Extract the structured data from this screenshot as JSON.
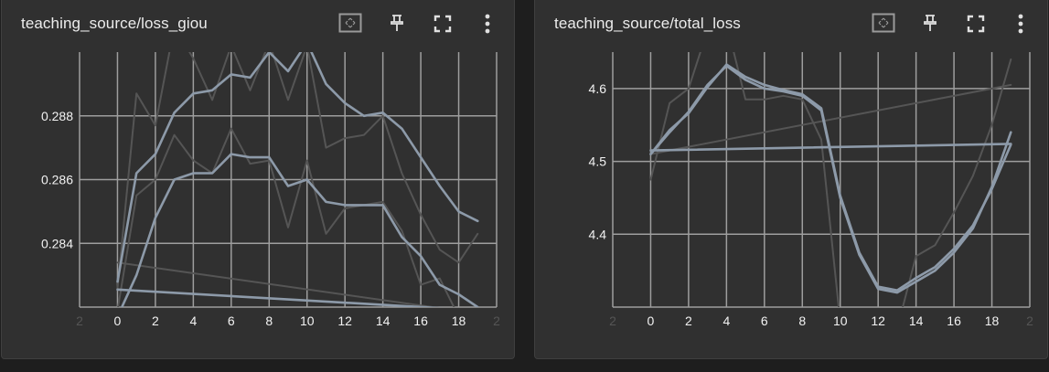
{
  "colors": {
    "background": "#1e1e1e",
    "card": "#303030",
    "grid": "#9e9e9e",
    "tick_text": "#f2f2f2",
    "series_main": "#8d9aa9",
    "series_faint": "#555555"
  },
  "toolbar_icons": [
    "fit-domain-icon",
    "pin-icon",
    "fullscreen-icon",
    "more-vert-icon"
  ],
  "chart_data": [
    {
      "type": "line",
      "title": "teaching_source/loss_giou",
      "x_ticks": [
        0,
        2,
        4,
        6,
        8,
        10,
        12,
        14,
        16,
        18
      ],
      "y_ticks": [
        0.284,
        0.286,
        0.288
      ],
      "y_tick_labels": [
        "0.284",
        "0.286",
        "0.288"
      ],
      "xlim": [
        -2,
        20
      ],
      "ylim": [
        0.282,
        0.29
      ],
      "grid": true,
      "series": [
        {
          "style": "faint",
          "x": [
            0,
            1,
            2,
            3,
            4,
            5,
            6,
            7,
            8,
            9,
            10,
            11,
            12,
            13,
            14,
            15,
            16,
            17,
            18,
            19
          ],
          "y": [
            0.2826,
            0.2887,
            0.2877,
            0.2908,
            0.2898,
            0.2885,
            0.2902,
            0.2888,
            0.2903,
            0.2885,
            0.2902,
            0.287,
            0.2873,
            0.2874,
            0.288,
            0.2862,
            0.2849,
            0.2838,
            0.2834,
            0.2843
          ]
        },
        {
          "style": "faint",
          "x": [
            0,
            1,
            2,
            3,
            4,
            5,
            6,
            7,
            8,
            9,
            10,
            11,
            12,
            13,
            14,
            15,
            16,
            17,
            18,
            19
          ],
          "y": [
            0.2819,
            0.2855,
            0.286,
            0.2874,
            0.2866,
            0.2862,
            0.2876,
            0.2865,
            0.2866,
            0.2845,
            0.2866,
            0.2843,
            0.2851,
            0.2852,
            0.2853,
            0.2844,
            0.2827,
            0.2829,
            0.2817,
            0.2815
          ]
        },
        {
          "style": "faint",
          "x": [
            0,
            19
          ],
          "y": [
            0.2834,
            0.2818
          ]
        },
        {
          "style": "main",
          "x": [
            0,
            1,
            2,
            3,
            4,
            5,
            6,
            7,
            8,
            9,
            10,
            11,
            12,
            13,
            14,
            15,
            16,
            17,
            18,
            19
          ],
          "y": [
            0.2828,
            0.2862,
            0.2868,
            0.2881,
            0.2887,
            0.2888,
            0.2893,
            0.2892,
            0.29,
            0.2894,
            0.2903,
            0.289,
            0.2884,
            0.288,
            0.2881,
            0.2876,
            0.2867,
            0.2858,
            0.285,
            0.2847
          ]
        },
        {
          "style": "main",
          "x": [
            0,
            1,
            2,
            3,
            4,
            5,
            6,
            7,
            8,
            9,
            10,
            11,
            12,
            13,
            14,
            15,
            16,
            17,
            18,
            19
          ],
          "y": [
            0.2817,
            0.283,
            0.2848,
            0.286,
            0.2862,
            0.2862,
            0.2868,
            0.2867,
            0.2867,
            0.2858,
            0.286,
            0.2853,
            0.2852,
            0.2852,
            0.2852,
            0.2842,
            0.2836,
            0.2827,
            0.2824,
            0.282
          ]
        },
        {
          "style": "main",
          "x": [
            0,
            19
          ],
          "y": [
            0.28255,
            0.2819
          ]
        }
      ]
    },
    {
      "type": "line",
      "title": "teaching_source/total_loss",
      "x_ticks": [
        0,
        2,
        4,
        6,
        8,
        10,
        12,
        14,
        16,
        18
      ],
      "y_ticks": [
        4.4,
        4.5,
        4.6
      ],
      "y_tick_labels": [
        "4.4",
        "4.5",
        "4.6"
      ],
      "xlim": [
        -2,
        20
      ],
      "ylim": [
        4.3,
        4.65
      ],
      "grid": true,
      "series": [
        {
          "style": "faint",
          "x": [
            0,
            1,
            2,
            3,
            4,
            5,
            6,
            7,
            8,
            9,
            10,
            11,
            12,
            13,
            14,
            15,
            16,
            17,
            18,
            19
          ],
          "y": [
            4.475,
            4.58,
            4.6,
            4.68,
            4.69,
            4.585,
            4.585,
            4.59,
            4.585,
            4.53,
            4.28,
            4.23,
            4.21,
            4.27,
            4.37,
            4.385,
            4.43,
            4.48,
            4.55,
            4.64
          ]
        },
        {
          "style": "faint",
          "x": [
            0,
            19
          ],
          "y": [
            4.51,
            4.605
          ]
        },
        {
          "style": "main",
          "x": [
            0,
            1,
            2,
            3,
            4,
            5,
            6,
            7,
            8,
            9,
            10,
            11,
            12,
            13,
            14,
            15,
            16,
            17,
            18,
            19
          ],
          "y": [
            4.51,
            4.543,
            4.566,
            4.602,
            4.633,
            4.616,
            4.605,
            4.598,
            4.592,
            4.573,
            4.453,
            4.375,
            4.328,
            4.323,
            4.34,
            4.355,
            4.38,
            4.412,
            4.462,
            4.523
          ]
        },
        {
          "style": "main",
          "x": [
            0,
            1,
            2,
            3,
            4,
            5,
            6,
            7,
            8,
            9,
            10,
            11,
            12,
            13,
            14,
            15,
            16,
            17,
            18,
            19
          ],
          "y": [
            4.51,
            4.54,
            4.568,
            4.605,
            4.631,
            4.612,
            4.6,
            4.596,
            4.59,
            4.57,
            4.45,
            4.372,
            4.325,
            4.32,
            4.335,
            4.35,
            4.375,
            4.408,
            4.465,
            4.54
          ]
        },
        {
          "style": "main",
          "x": [
            0,
            19
          ],
          "y": [
            4.515,
            4.524
          ]
        }
      ]
    }
  ]
}
